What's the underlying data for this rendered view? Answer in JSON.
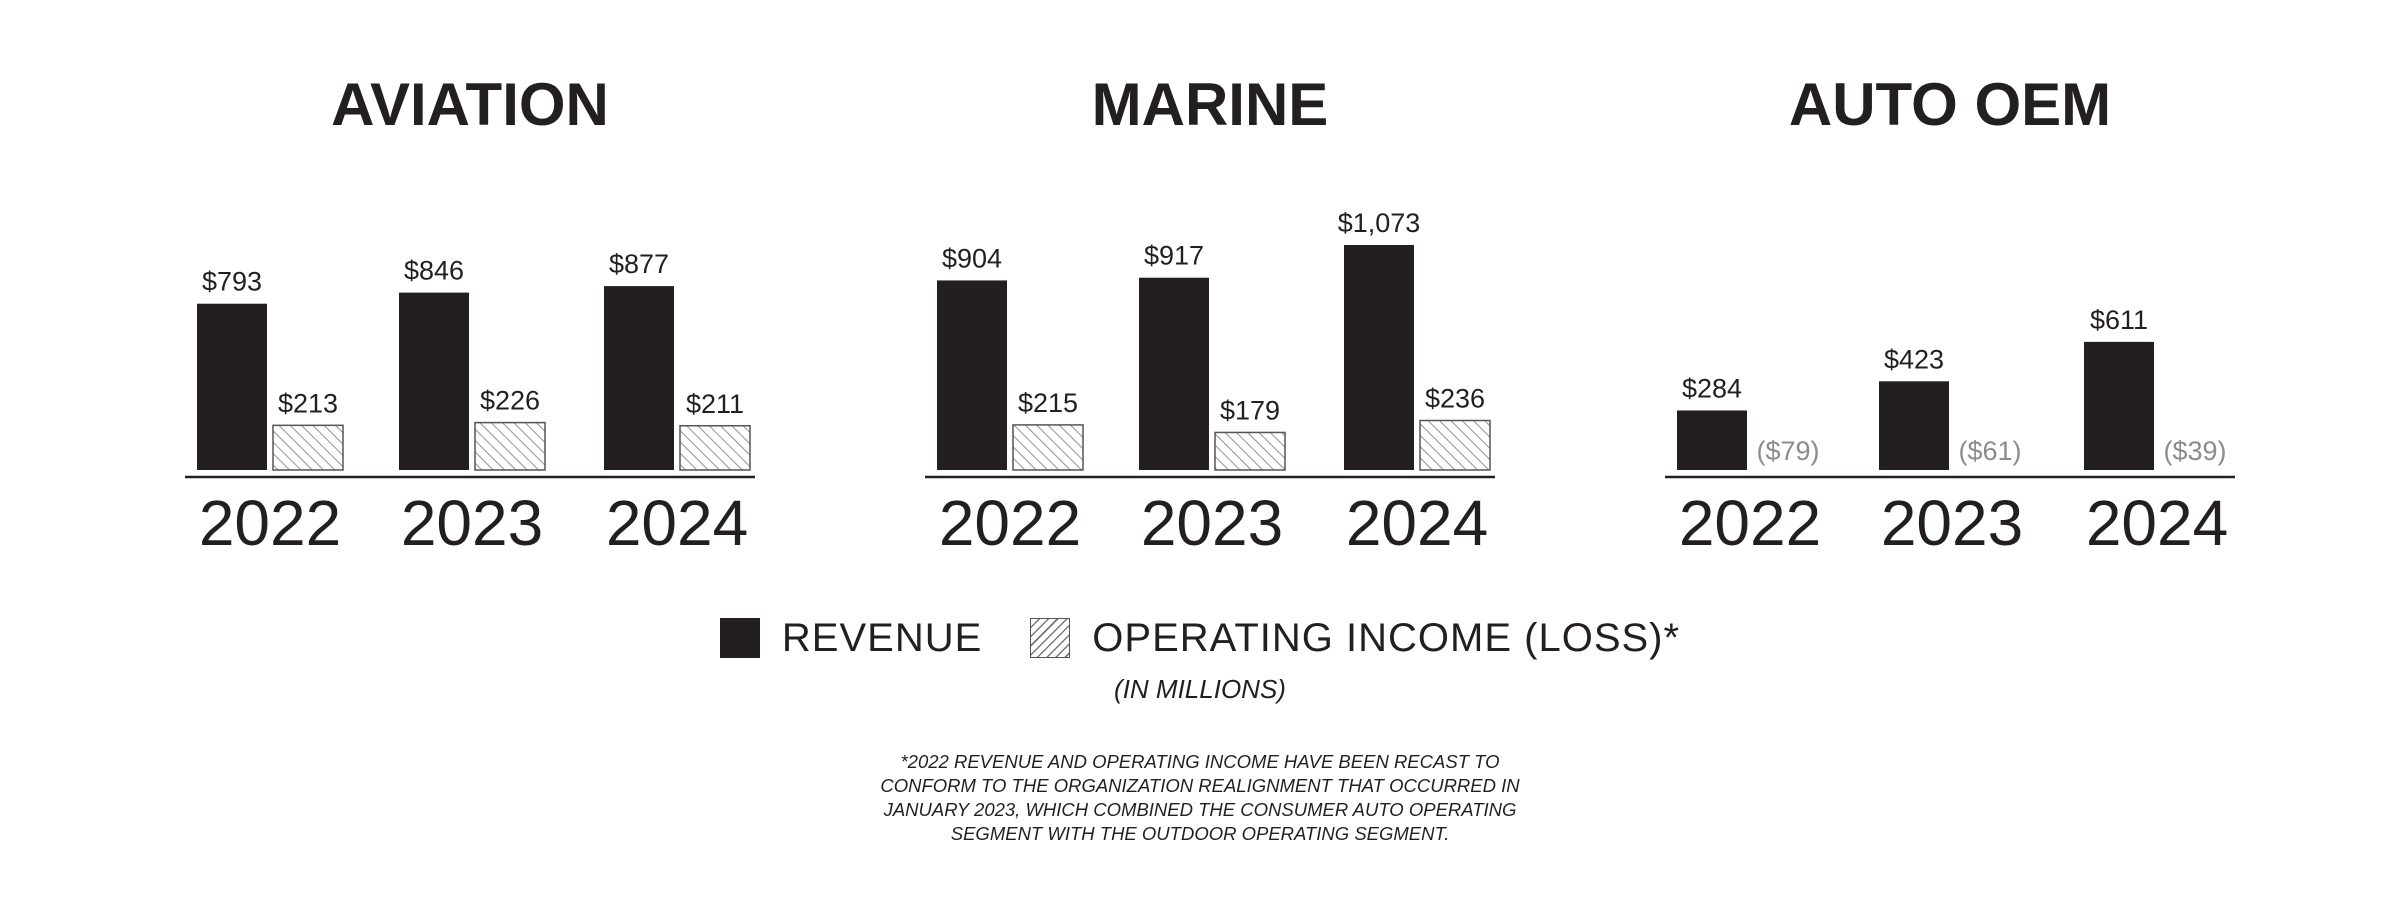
{
  "chart_data": [
    {
      "type": "bar",
      "title": "AVIATION",
      "categories": [
        "2022",
        "2023",
        "2024"
      ],
      "series": [
        {
          "name": "REVENUE",
          "values": [
            793,
            846,
            877
          ],
          "labels": [
            "$793",
            "$846",
            "$877"
          ]
        },
        {
          "name": "OPERATING INCOME (LOSS)*",
          "values": [
            213,
            226,
            211
          ],
          "labels": [
            "$213",
            "$226",
            "$211"
          ]
        }
      ]
    },
    {
      "type": "bar",
      "title": "MARINE",
      "categories": [
        "2022",
        "2023",
        "2024"
      ],
      "series": [
        {
          "name": "REVENUE",
          "values": [
            904,
            917,
            1073
          ],
          "labels": [
            "$904",
            "$917",
            "$1,073"
          ]
        },
        {
          "name": "OPERATING INCOME (LOSS)*",
          "values": [
            215,
            179,
            236
          ],
          "labels": [
            "$215",
            "$179",
            "$236"
          ]
        }
      ]
    },
    {
      "type": "bar",
      "title": "AUTO OEM",
      "categories": [
        "2022",
        "2023",
        "2024"
      ],
      "series": [
        {
          "name": "REVENUE",
          "values": [
            284,
            423,
            611
          ],
          "labels": [
            "$284",
            "$423",
            "$611"
          ]
        },
        {
          "name": "OPERATING INCOME (LOSS)*",
          "values": [
            -79,
            -61,
            -39
          ],
          "labels": [
            "($79)",
            "($61)",
            "($39)"
          ]
        }
      ]
    }
  ],
  "legend": {
    "revenue": "REVENUE",
    "operating_income": "OPERATING INCOME (LOSS)*"
  },
  "units_note": "(IN MILLIONS)",
  "footnote": [
    "*2022 REVENUE AND OPERATING INCOME HAVE BEEN RECAST TO",
    "CONFORM TO THE ORGANIZATION REALIGNMENT THAT OCCURRED IN",
    "JANUARY 2023, WHICH COMBINED THE CONSUMER AUTO OPERATING",
    "SEGMENT WITH THE OUTDOOR OPERATING SEGMENT."
  ],
  "colors": {
    "revenue": "#231f20",
    "operating_income_hatch": "#777777",
    "negative_label": "#8c8c8c"
  }
}
